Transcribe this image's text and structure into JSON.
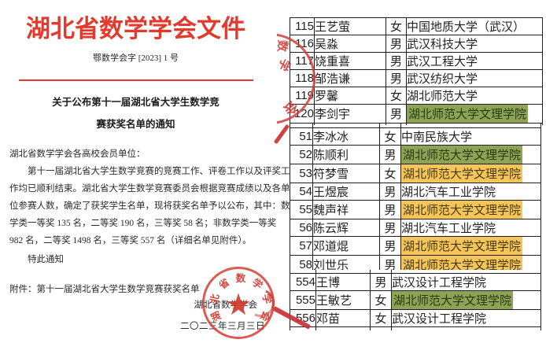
{
  "document": {
    "title": "湖北省数学学会文件",
    "doc_number": "鄂数学会字 [2023] 1 号",
    "heading_line1": "关于公布第十一届湖北省大学生数学竞",
    "heading_line2": "赛获奖名单的通知",
    "salutation": "湖北省数学学会各高校会员单位：",
    "body_lines": [
      "第十一届湖北省大学生数学竞赛的竞赛工作、评卷工作以及评奖工",
      "作均已顺利结束。湖北省大学生数学竞赛委员会根据竞赛成绩以及各单",
      "位参赛人数，确定了获奖学生名单，现将获奖名单予以公布，其中：数",
      "学类一等奖 135 名，二等奖 190 名，三等奖 58 名；非数学类一等奖",
      "982 名，二等奖 1498 名，三等奖 557 名（详细名单见附件）。"
    ],
    "closing": "特此通知",
    "attachment": "附件：第十一届湖北省大学生数学竞赛获奖名单",
    "signature": "湖北省数学学会",
    "date": "二〇二三年三月三日",
    "seal_text": "湖北省数学学会",
    "seal_chars": [
      "湖",
      "北",
      "省",
      "数",
      "学",
      "学",
      "会"
    ]
  },
  "stamps": {
    "fragment_chars": [
      "数",
      "学",
      "会"
    ]
  },
  "colors": {
    "accent_red": "#e23a2c",
    "seal_red": "#d33e34",
    "green_highlight": "#8da355",
    "yellow_highlight": "#f6c55a"
  },
  "tables": [
    {
      "rows": [
        {
          "no": "115",
          "name": "王艺萤",
          "gender": "女",
          "school": "中国地质大学（武汉）",
          "hl": "none"
        },
        {
          "no": "116",
          "name": "吴淼",
          "gender": "男",
          "school": "武汉科技大学",
          "hl": "none"
        },
        {
          "no": "117",
          "name": "饶重喜",
          "gender": "男",
          "school": "武汉工程大学",
          "hl": "none"
        },
        {
          "no": "118",
          "name": "邹浩谦",
          "gender": "男",
          "school": "武汉纺织大学",
          "hl": "none"
        },
        {
          "no": "119",
          "name": "罗馨",
          "gender": "女",
          "school": "湖北师范大学",
          "hl": "none"
        },
        {
          "no": "120",
          "name": "李剑宇",
          "gender": "男",
          "school": "湖北师范大学文理学院",
          "hl": "green"
        }
      ]
    },
    {
      "rows": [
        {
          "no": "51",
          "name": "李冰冰",
          "gender": "女",
          "school": "中南民族大学",
          "hl": "none"
        },
        {
          "no": "52",
          "name": "陈顺利",
          "gender": "男",
          "school": "湖北师范大学文理学院",
          "hl": "green"
        },
        {
          "no": "53",
          "name": "符梦雪",
          "gender": "女",
          "school": "湖北师范大学文理学院",
          "hl": "yellow"
        },
        {
          "no": "54",
          "name": "王煜宸",
          "gender": "男",
          "school": "湖北汽车工业学院",
          "hl": "none"
        },
        {
          "no": "55",
          "name": "魏声祥",
          "gender": "男",
          "school": "湖北师范大学文理学院",
          "hl": "yellow"
        },
        {
          "no": "56",
          "name": "陈云辉",
          "gender": "男",
          "school": "湖北汽车工业学院",
          "hl": "none"
        },
        {
          "no": "57",
          "name": "邓道焜",
          "gender": "男",
          "school": "湖北师范大学文理学院",
          "hl": "yellow"
        },
        {
          "no": "58",
          "name": "刘世乐",
          "gender": "男",
          "school": "湖北师范大学文理学院",
          "hl": "yellow"
        }
      ]
    },
    {
      "rows": [
        {
          "no": "554",
          "name": "王博",
          "gender": "男",
          "school": "武汉设计工程学院",
          "hl": "none"
        },
        {
          "no": "555",
          "name": "王敏艺",
          "gender": "女",
          "school": "湖北师范大学文理学院",
          "hl": "green"
        },
        {
          "no": "556",
          "name": "邓苗",
          "gender": "女",
          "school": "武汉设计工程学院",
          "hl": "none"
        }
      ]
    }
  ]
}
